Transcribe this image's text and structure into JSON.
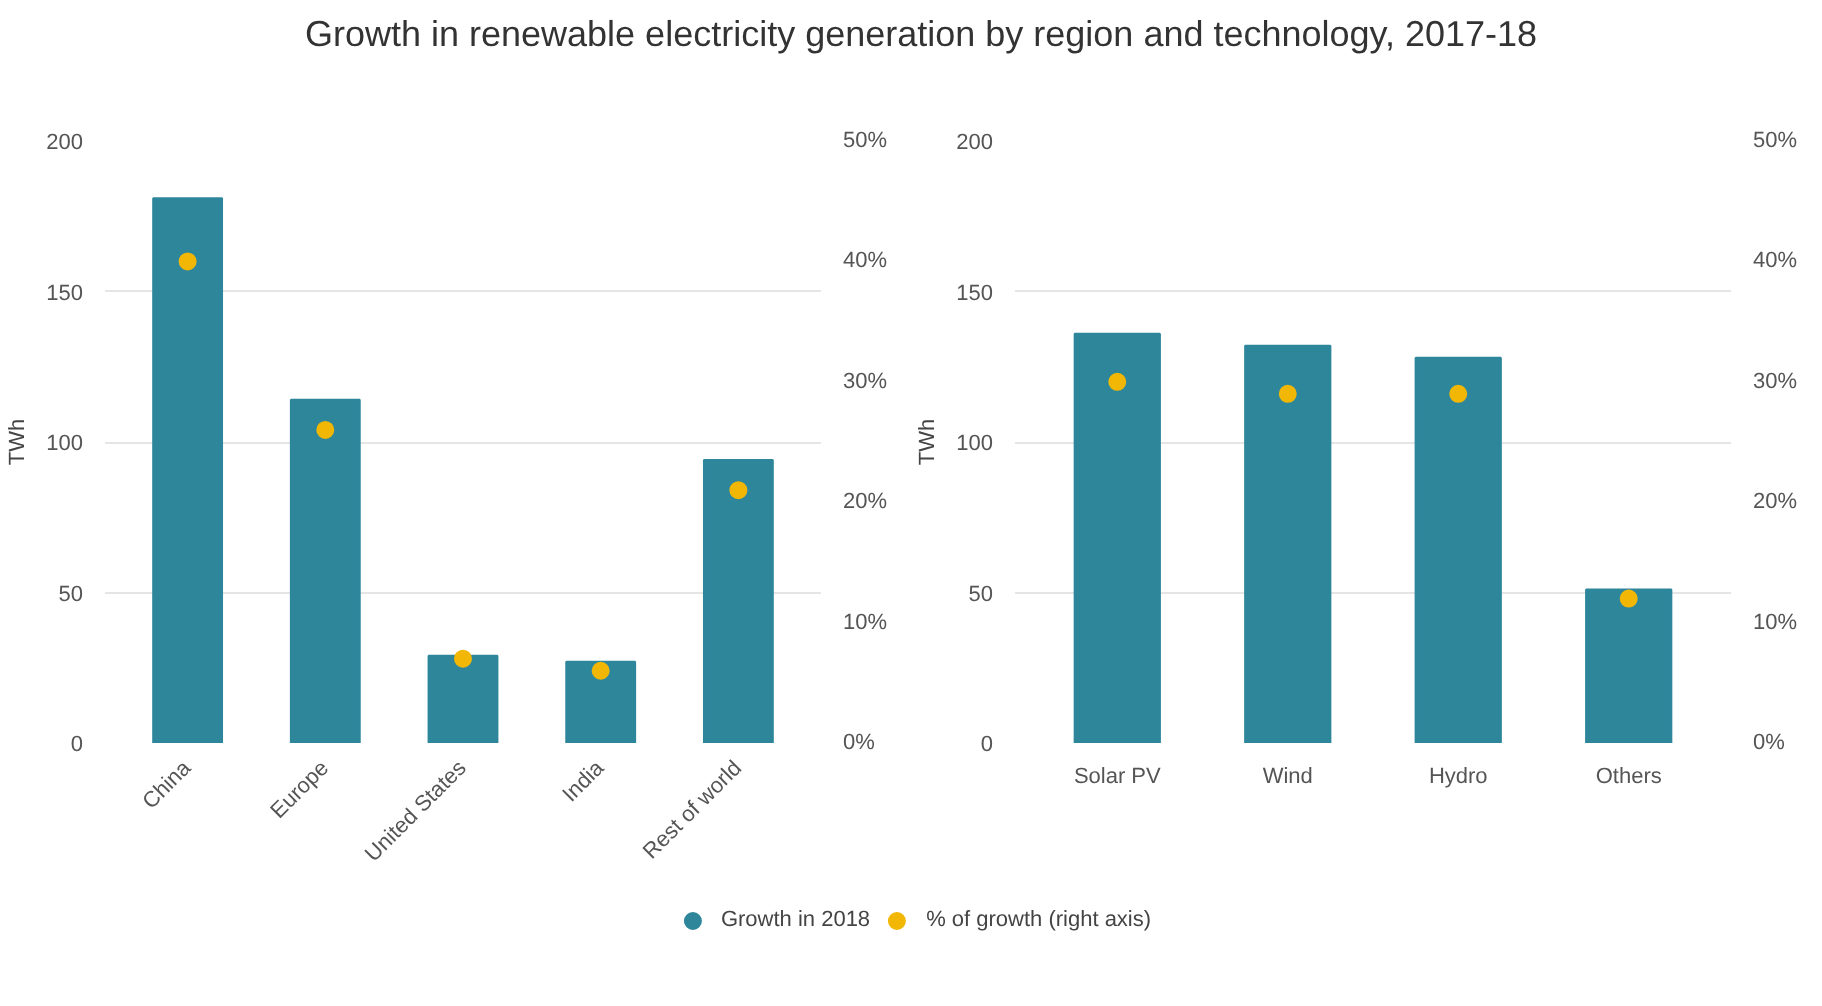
{
  "chart_data": [
    {
      "type": "bar",
      "title": "Growth in renewable electricity generation by region and technology, 2017-18",
      "categories": [
        "China",
        "Europe",
        "United States",
        "India",
        "Rest of world"
      ],
      "ylabel": "TWh",
      "ylim": [
        0,
        200
      ],
      "yticks": [
        0,
        50,
        100,
        150,
        200
      ],
      "y2lim": [
        0,
        50
      ],
      "y2ticks": [
        {
          "value": 0,
          "label": "0%"
        },
        {
          "value": 10,
          "label": "10%"
        },
        {
          "value": 20,
          "label": "20%"
        },
        {
          "value": 30,
          "label": "30%"
        },
        {
          "value": 40,
          "label": "40%"
        },
        {
          "value": 50,
          "label": "50%"
        }
      ],
      "grid": "y",
      "legend": "bottom",
      "series": [
        {
          "name": "Growth in 2018",
          "color": "#2e869b",
          "values": [
            181,
            114,
            29,
            27,
            94
          ]
        },
        {
          "name": "% of growth (right axis)",
          "type": "scatter",
          "axis": "y2",
          "marker": "circle",
          "color": "#f2b705",
          "values": [
            40,
            26,
            7,
            6,
            21
          ]
        }
      ]
    },
    {
      "type": "bar",
      "categories": [
        "Solar PV",
        "Wind",
        "Hydro",
        "Others"
      ],
      "ylabel": "TWh",
      "ylim": [
        0,
        200
      ],
      "yticks": [
        0,
        50,
        100,
        150,
        200
      ],
      "y2lim": [
        0,
        50
      ],
      "y2ticks": [
        {
          "value": 0,
          "label": "0%"
        },
        {
          "value": 10,
          "label": "10%"
        },
        {
          "value": 20,
          "label": "20%"
        },
        {
          "value": 30,
          "label": "30%"
        },
        {
          "value": 40,
          "label": "40%"
        },
        {
          "value": 50,
          "label": "50%"
        }
      ],
      "grid": "y",
      "series": [
        {
          "color": "#2e869b",
          "values": [
            136,
            132,
            128,
            51
          ]
        },
        {
          "type": "scatter",
          "axis": "y2",
          "marker": "circle",
          "color": "#f2b705",
          "values": [
            30,
            29,
            29,
            12
          ]
        }
      ]
    }
  ]
}
